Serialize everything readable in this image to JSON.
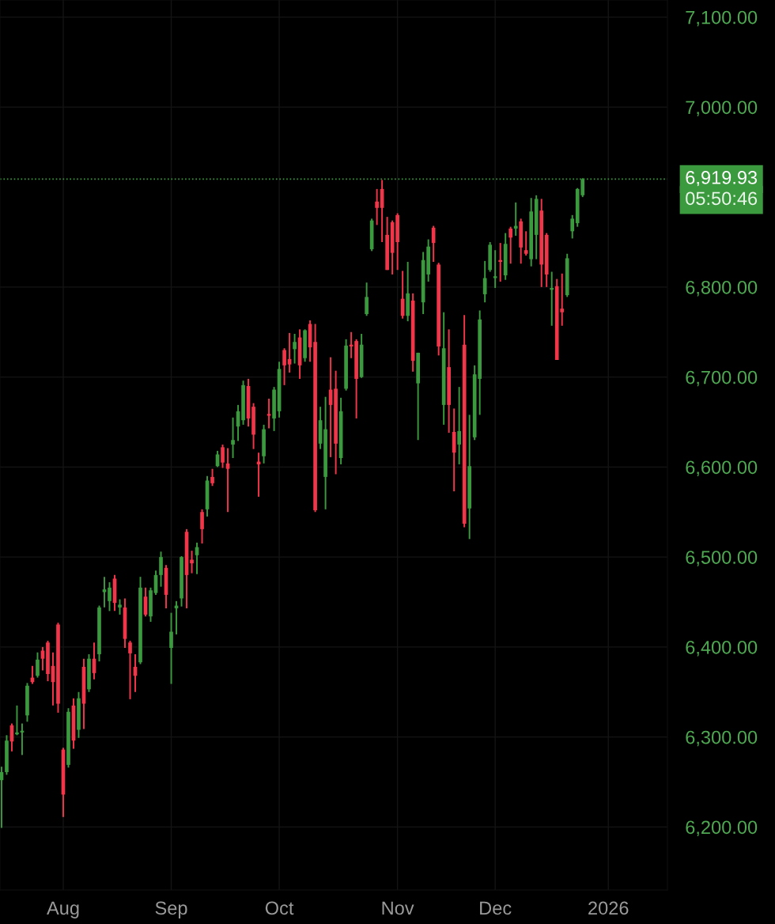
{
  "chart_data": {
    "type": "candlestick",
    "categories": [
      null,
      null,
      null,
      null,
      null,
      null,
      null,
      null,
      null,
      null,
      null,
      null,
      "Aug",
      null,
      null,
      null,
      null,
      null,
      null,
      null,
      null,
      null,
      null,
      null,
      null,
      null,
      null,
      null,
      null,
      null,
      null,
      null,
      null,
      "Sep",
      null,
      null,
      null,
      null,
      null,
      null,
      null,
      null,
      null,
      null,
      null,
      null,
      null,
      null,
      null,
      null,
      null,
      null,
      null,
      null,
      "Oct",
      null,
      null,
      null,
      null,
      null,
      null,
      null,
      null,
      null,
      null,
      null,
      null,
      null,
      null,
      null,
      null,
      null,
      null,
      null,
      null,
      null,
      null,
      "Nov",
      null,
      null,
      null,
      null,
      null,
      null,
      null,
      null,
      null,
      null,
      null,
      null,
      null,
      null,
      null,
      null,
      null,
      null,
      "Dec",
      null,
      null,
      null,
      null,
      null,
      null,
      null,
      null,
      null,
      null,
      null,
      null,
      null,
      null,
      null,
      null,
      null,
      null,
      null,
      null,
      null,
      "2026",
      null,
      null,
      null,
      null,
      null,
      null,
      null,
      null,
      null,
      null,
      null
    ],
    "ohlc": [
      [
        6252,
        6267,
        6199,
        6261
      ],
      [
        6261,
        6302,
        6258,
        6296
      ],
      [
        6313,
        6315,
        6284,
        6295
      ],
      [
        6303,
        6335,
        6302,
        6305
      ],
      [
        6305,
        6315,
        6280,
        6307
      ],
      [
        6324,
        6360,
        6317,
        6357
      ],
      [
        6366,
        6379,
        6359,
        6361
      ],
      [
        6368,
        6394,
        6366,
        6386
      ],
      [
        6396,
        6400,
        6374,
        6387
      ],
      [
        6405,
        6407,
        6362,
        6370
      ],
      [
        6379,
        6394,
        6335,
        6361
      ],
      [
        6425,
        6427,
        6327,
        6337
      ],
      [
        6286,
        6288,
        6211,
        6236
      ],
      [
        6269,
        6332,
        6266,
        6328
      ],
      [
        6335,
        6343,
        6287,
        6296
      ],
      [
        6308,
        6350,
        6299,
        6343
      ],
      [
        6378,
        6387,
        6309,
        6337
      ],
      [
        6353,
        6392,
        6350,
        6387
      ],
      [
        6387,
        6405,
        6364,
        6371
      ],
      [
        6392,
        6446,
        6384,
        6444
      ],
      [
        6461,
        6478,
        6444,
        6464
      ],
      [
        6451,
        6472,
        6440,
        6466
      ],
      [
        6476,
        6480,
        6440,
        6449
      ],
      [
        6444,
        6453,
        6436,
        6447
      ],
      [
        6444,
        6454,
        6399,
        6409
      ],
      [
        6405,
        6407,
        6342,
        6393
      ],
      [
        6378,
        6392,
        6350,
        6368
      ],
      [
        6383,
        6478,
        6381,
        6466
      ],
      [
        6456,
        6466,
        6434,
        6436
      ],
      [
        6434,
        6466,
        6428,
        6463
      ],
      [
        6460,
        6485,
        6458,
        6480
      ],
      [
        6480,
        6506,
        6467,
        6500
      ],
      [
        6488,
        6491,
        6443,
        6458
      ],
      [
        6399,
        6438,
        6359,
        6417
      ],
      [
        6443,
        6451,
        6414,
        6446
      ],
      [
        6454,
        6501,
        6445,
        6500
      ],
      [
        6528,
        6531,
        6443,
        6480
      ],
      [
        6497,
        6507,
        6482,
        6493
      ],
      [
        6502,
        6516,
        6481,
        6511
      ],
      [
        6550,
        6553,
        6515,
        6531
      ],
      [
        6553,
        6590,
        6545,
        6585
      ],
      [
        6589,
        6598,
        6579,
        6582
      ],
      [
        6601,
        6618,
        6600,
        6614
      ],
      [
        6622,
        6625,
        6599,
        6605
      ],
      [
        6604,
        6621,
        6550,
        6598
      ],
      [
        6625,
        6655,
        6610,
        6630
      ],
      [
        6645,
        6669,
        6629,
        6662
      ],
      [
        6652,
        6696,
        6647,
        6691
      ],
      [
        6690,
        6698,
        6645,
        6654
      ],
      [
        6667,
        6671,
        6620,
        6636
      ],
      [
        6606,
        6616,
        6567,
        6603
      ],
      [
        6612,
        6647,
        6604,
        6642
      ],
      [
        6659,
        6676,
        6643,
        6657
      ],
      [
        6654,
        6689,
        6640,
        6686
      ],
      [
        6662,
        6717,
        6655,
        6709
      ],
      [
        6730,
        6732,
        6691,
        6713
      ],
      [
        6720,
        6749,
        6705,
        6714
      ],
      [
        6731,
        6748,
        6715,
        6739
      ],
      [
        6744,
        6753,
        6698,
        6713
      ],
      [
        6721,
        6753,
        6717,
        6752
      ],
      [
        6759,
        6763,
        6717,
        6733
      ],
      [
        6739,
        6759,
        6550,
        6552
      ],
      [
        6626,
        6667,
        6620,
        6652
      ],
      [
        6589,
        6678,
        6553,
        6642
      ],
      [
        6686,
        6722,
        6611,
        6669
      ],
      [
        6687,
        6707,
        6592,
        6626
      ],
      [
        6610,
        6677,
        6603,
        6662
      ],
      [
        6687,
        6742,
        6685,
        6735
      ],
      [
        6736,
        6750,
        6721,
        6734
      ],
      [
        6740,
        6742,
        6654,
        6698
      ],
      [
        6700,
        6748,
        6699,
        6736
      ],
      [
        6770,
        6805,
        6768,
        6789
      ],
      [
        6842,
        6876,
        6840,
        6874
      ],
      [
        6895,
        6909,
        6869,
        6888
      ],
      [
        6909,
        6919,
        6850,
        6888
      ],
      [
        6858,
        6878,
        6819,
        6819
      ],
      [
        6872,
        6874,
        6814,
        6838
      ],
      [
        6880,
        6882,
        6819,
        6850
      ],
      [
        6787,
        6818,
        6765,
        6768
      ],
      [
        6768,
        6828,
        6762,
        6793
      ],
      [
        6785,
        6793,
        6706,
        6718
      ],
      [
        6693,
        6727,
        6630,
        6727
      ],
      [
        6783,
        6839,
        6770,
        6830
      ],
      [
        6814,
        6853,
        6806,
        6845
      ],
      [
        6866,
        6868,
        6828,
        6849
      ],
      [
        6825,
        6827,
        6724,
        6734
      ],
      [
        6669,
        6772,
        6647,
        6732
      ],
      [
        6711,
        6753,
        6638,
        6669
      ],
      [
        6639,
        6665,
        6573,
        6616
      ],
      [
        6625,
        6689,
        6603,
        6640
      ],
      [
        6736,
        6769,
        6533,
        6537
      ],
      [
        6554,
        6658,
        6520,
        6601
      ],
      [
        6633,
        6713,
        6630,
        6703
      ],
      [
        6698,
        6774,
        6658,
        6764
      ],
      [
        6792,
        6829,
        6783,
        6810
      ],
      [
        6819,
        6850,
        6817,
        6847
      ],
      [
        6810,
        6841,
        6799,
        6812
      ],
      [
        6830,
        6849,
        6806,
        6828
      ],
      [
        6813,
        6860,
        6808,
        6848
      ],
      [
        6865,
        6867,
        6826,
        6855
      ],
      [
        6865,
        6894,
        6857,
        6868
      ],
      [
        6873,
        6876,
        6826,
        6844
      ],
      [
        6841,
        6862,
        6835,
        6837
      ],
      [
        6831,
        6899,
        6823,
        6884
      ],
      [
        6858,
        6902,
        6831,
        6898
      ],
      [
        6885,
        6898,
        6800,
        6825
      ],
      [
        6858,
        6860,
        6800,
        6814
      ],
      [
        6797,
        6817,
        6757,
        6799
      ],
      [
        6801,
        6809,
        6719,
        6719
      ],
      [
        6776,
        6815,
        6757,
        6772
      ],
      [
        6791,
        6837,
        6789,
        6832
      ],
      [
        6862,
        6880,
        6854,
        6876
      ],
      [
        6871,
        6910,
        6867,
        6909
      ],
      [
        6902,
        6921,
        6900,
        6919.93
      ],
      null,
      null,
      null,
      null,
      null,
      null,
      null,
      null,
      null,
      null,
      null,
      null,
      null,
      null,
      null,
      null
    ],
    "colors": [
      "#3b9a3e",
      "#3b9a3e",
      "#f2364a",
      "#3b9a3e",
      "#3b9a3e",
      "#3b9a3e",
      "#f2364a",
      "#3b9a3e",
      "#f2364a",
      "#f2364a",
      "#f2364a",
      "#f2364a",
      "#f2364a",
      "#3b9a3e",
      "#f2364a",
      "#3b9a3e",
      "#f2364a",
      "#3b9a3e",
      "#f2364a",
      "#3b9a3e",
      "#3b9a3e",
      "#3b9a3e",
      "#f2364a",
      "#3b9a3e",
      "#f2364a",
      "#f2364a",
      "#f2364a",
      "#3b9a3e",
      "#f2364a",
      "#3b9a3e",
      "#3b9a3e",
      "#3b9a3e",
      "#f2364a",
      "#3b9a3e",
      "#3b9a3e",
      "#3b9a3e",
      "#f2364a",
      "#f2364a",
      "#3b9a3e",
      "#f2364a",
      "#3b9a3e",
      "#f2364a",
      "#3b9a3e",
      "#f2364a",
      "#f2364a",
      "#3b9a3e",
      "#3b9a3e",
      "#3b9a3e",
      "#f2364a",
      "#f2364a",
      "#f2364a",
      "#3b9a3e",
      "#f2364a",
      "#3b9a3e",
      "#3b9a3e",
      "#f2364a",
      "#f2364a",
      "#3b9a3e",
      "#f2364a",
      "#3b9a3e",
      "#f2364a",
      "#f2364a",
      "#3b9a3e",
      "#3b9a3e",
      "#f2364a",
      "#f2364a",
      "#3b9a3e",
      "#3b9a3e",
      "#f2364a",
      "#f2364a",
      "#3b9a3e",
      "#3b9a3e",
      "#3b9a3e",
      "#f2364a",
      "#f2364a",
      "#f2364a",
      "#f2364a",
      "#f2364a",
      "#f2364a",
      "#3b9a3e",
      "#f2364a",
      "#3b9a3e",
      "#3b9a3e",
      "#3b9a3e",
      "#f2364a",
      "#f2364a",
      "#3b9a3e",
      "#f2364a",
      "#f2364a",
      "#3b9a3e",
      "#f2364a",
      "#3b9a3e",
      "#3b9a3e",
      "#3b9a3e",
      "#3b9a3e",
      "#3b9a3e",
      "#3b9a3e",
      "#f2364a",
      "#3b9a3e",
      "#f2364a",
      "#3b9a3e",
      "#f2364a",
      "#f2364a",
      "#3b9a3e",
      "#3b9a3e",
      "#f2364a",
      "#f2364a",
      "#3b9a3e",
      "#f2364a",
      "#f2364a",
      "#3b9a3e",
      "#3b9a3e",
      "#3b9a3e",
      "#3b9a3e",
      null,
      null,
      null,
      null,
      null,
      null,
      null,
      null,
      null,
      null,
      null,
      null,
      null,
      null,
      null,
      null
    ],
    "ylim": [
      6130,
      7119
    ],
    "yticks": [
      {
        "value": 6200,
        "label": "6,200.00"
      },
      {
        "value": 6300,
        "label": "6,300.00"
      },
      {
        "value": 6400,
        "label": "6,400.00"
      },
      {
        "value": 6500,
        "label": "6,500.00"
      },
      {
        "value": 6600,
        "label": "6,600.00"
      },
      {
        "value": 6700,
        "label": "6,700.00"
      },
      {
        "value": 6800,
        "label": "6,800.00"
      },
      {
        "value": 7000,
        "label": "7,000.00"
      },
      {
        "value": 7100,
        "label": "7,100.00"
      }
    ],
    "ref_lines": [
      {
        "axis": "y",
        "value": 6919.93,
        "label": "6,919.93",
        "color": "#3b9a3e",
        "line_style": "dotted"
      }
    ],
    "annotations": [
      "05:50:46"
    ],
    "grid": true
  }
}
